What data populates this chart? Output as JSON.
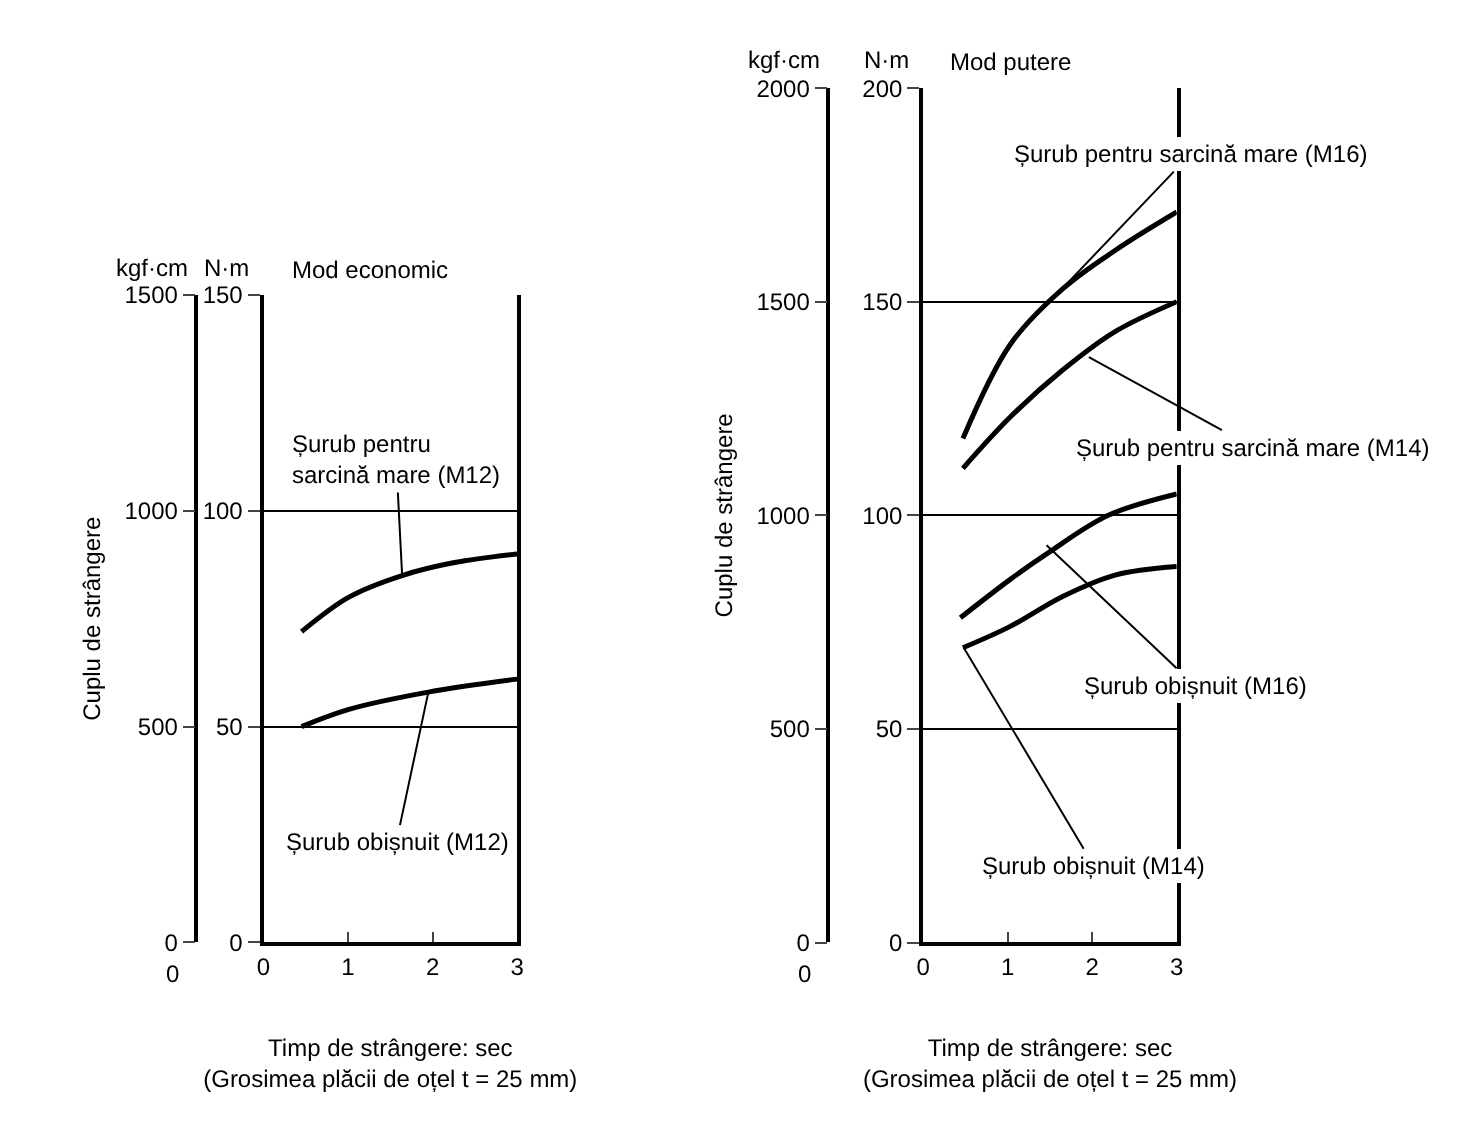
{
  "chart_data": [
    {
      "type": "line",
      "title": "Mod economic",
      "y2label": "Cuplu de strângere",
      "xlabel": "Timp de strângere: sec\n(Grosimea plăcii de oțel t = 25 mm)",
      "xlim": [
        0,
        3
      ],
      "xticks": [
        0,
        1,
        2,
        3
      ],
      "ylim": [
        0,
        150
      ],
      "yticks": [
        0,
        50,
        100,
        150
      ],
      "y2lim": [
        0,
        1500
      ],
      "y2ticks": [
        0,
        500,
        1000,
        1500
      ],
      "grid": "y",
      "series": [
        {
          "color": "#000000",
          "x": [
            0.45,
            1.01,
            1.64,
            2.26,
            3
          ],
          "values": [
            72,
            80,
            85,
            88,
            90
          ]
        },
        {
          "color": "#000000",
          "x": [
            0.45,
            1.01,
            1.95,
            3
          ],
          "values": [
            50,
            54,
            58,
            61
          ]
        }
      ],
      "annotations": [
        {
          "text": "Șurub pentru\nsarcină mare (M12)",
          "x": 1.64,
          "y": 85
        },
        {
          "text": "Șurub obișnuit (M12)",
          "x": 1.95,
          "y": 58
        },
        "kgf·cm",
        "N·m",
        "0"
      ]
    },
    {
      "type": "line",
      "title": "Mod putere",
      "y2label": "Cuplu de strângere",
      "xlabel": "Timp de strângere: sec\n(Grosimea plăcii de oțel t = 25 mm)",
      "xlim": [
        0,
        3
      ],
      "xticks": [
        0,
        1,
        2,
        3
      ],
      "ylim": [
        0,
        200
      ],
      "yticks": [
        0,
        50,
        100,
        150,
        200
      ],
      "y2lim": [
        0,
        2000
      ],
      "y2ticks": [
        0,
        500,
        1000,
        1500,
        2000
      ],
      "grid": "y",
      "series": [
        {
          "color": "#000000",
          "x": [
            0.47,
            1.03,
            1.65,
            2.27,
            3
          ],
          "values": [
            118,
            140,
            153,
            162,
            171
          ]
        },
        {
          "color": "#000000",
          "x": [
            0.47,
            1.03,
            1.65,
            2.27,
            3
          ],
          "values": [
            111,
            123,
            134,
            143,
            150
          ]
        },
        {
          "color": "#000000",
          "x": [
            0.44,
            1.03,
            1.5,
            2.19,
            3
          ],
          "values": [
            76,
            85,
            91.5,
            100,
            105
          ]
        },
        {
          "color": "#000000",
          "x": [
            0.47,
            1.03,
            1.65,
            2.27,
            3
          ],
          "values": [
            69,
            74,
            81,
            86,
            88
          ]
        }
      ],
      "annotations": [
        {
          "text": "Șurub pentru sarcină mare (M16)",
          "x": 1.69,
          "y": 154
        },
        {
          "text": "Șurub pentru sarcină mare (M14)",
          "x": 1.96,
          "y": 137
        },
        {
          "text": "Șurub obișnuit (M16)",
          "x": 1.46,
          "y": 93
        },
        {
          "text": "Șurub obișnuit (M14)",
          "x": 0.48,
          "y": 69
        },
        "kgf·cm",
        "N·m",
        "0"
      ]
    }
  ]
}
